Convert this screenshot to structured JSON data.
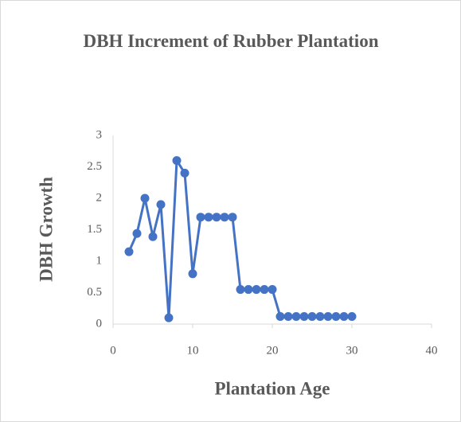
{
  "chart_data": {
    "type": "line",
    "title": "DBH Increment of Rubber Plantation",
    "x_label": "Plantation Age",
    "y_label": "DBH Growth",
    "x": [
      2,
      3,
      4,
      5,
      6,
      7,
      8,
      9,
      10,
      11,
      12,
      13,
      14,
      15,
      16,
      17,
      18,
      19,
      20,
      21,
      22,
      23,
      24,
      25,
      26,
      27,
      28,
      29,
      30
    ],
    "series": [
      {
        "name": "DBH Growth",
        "color": "#4472c4",
        "values": [
          1.15,
          1.44,
          2.0,
          1.39,
          1.9,
          0.1,
          2.6,
          2.4,
          0.8,
          1.7,
          1.7,
          1.7,
          1.7,
          1.7,
          0.55,
          0.55,
          0.55,
          0.55,
          0.55,
          0.12,
          0.12,
          0.12,
          0.12,
          0.12,
          0.12,
          0.12,
          0.12,
          0.12,
          0.12
        ]
      }
    ],
    "xlim": [
      0,
      40
    ],
    "xticks": [
      0,
      10,
      20,
      30,
      40
    ],
    "ylim": [
      0,
      3
    ],
    "yticks": [
      0,
      0.5,
      1,
      1.5,
      2,
      2.5,
      3
    ],
    "grid": false,
    "markers": true
  }
}
